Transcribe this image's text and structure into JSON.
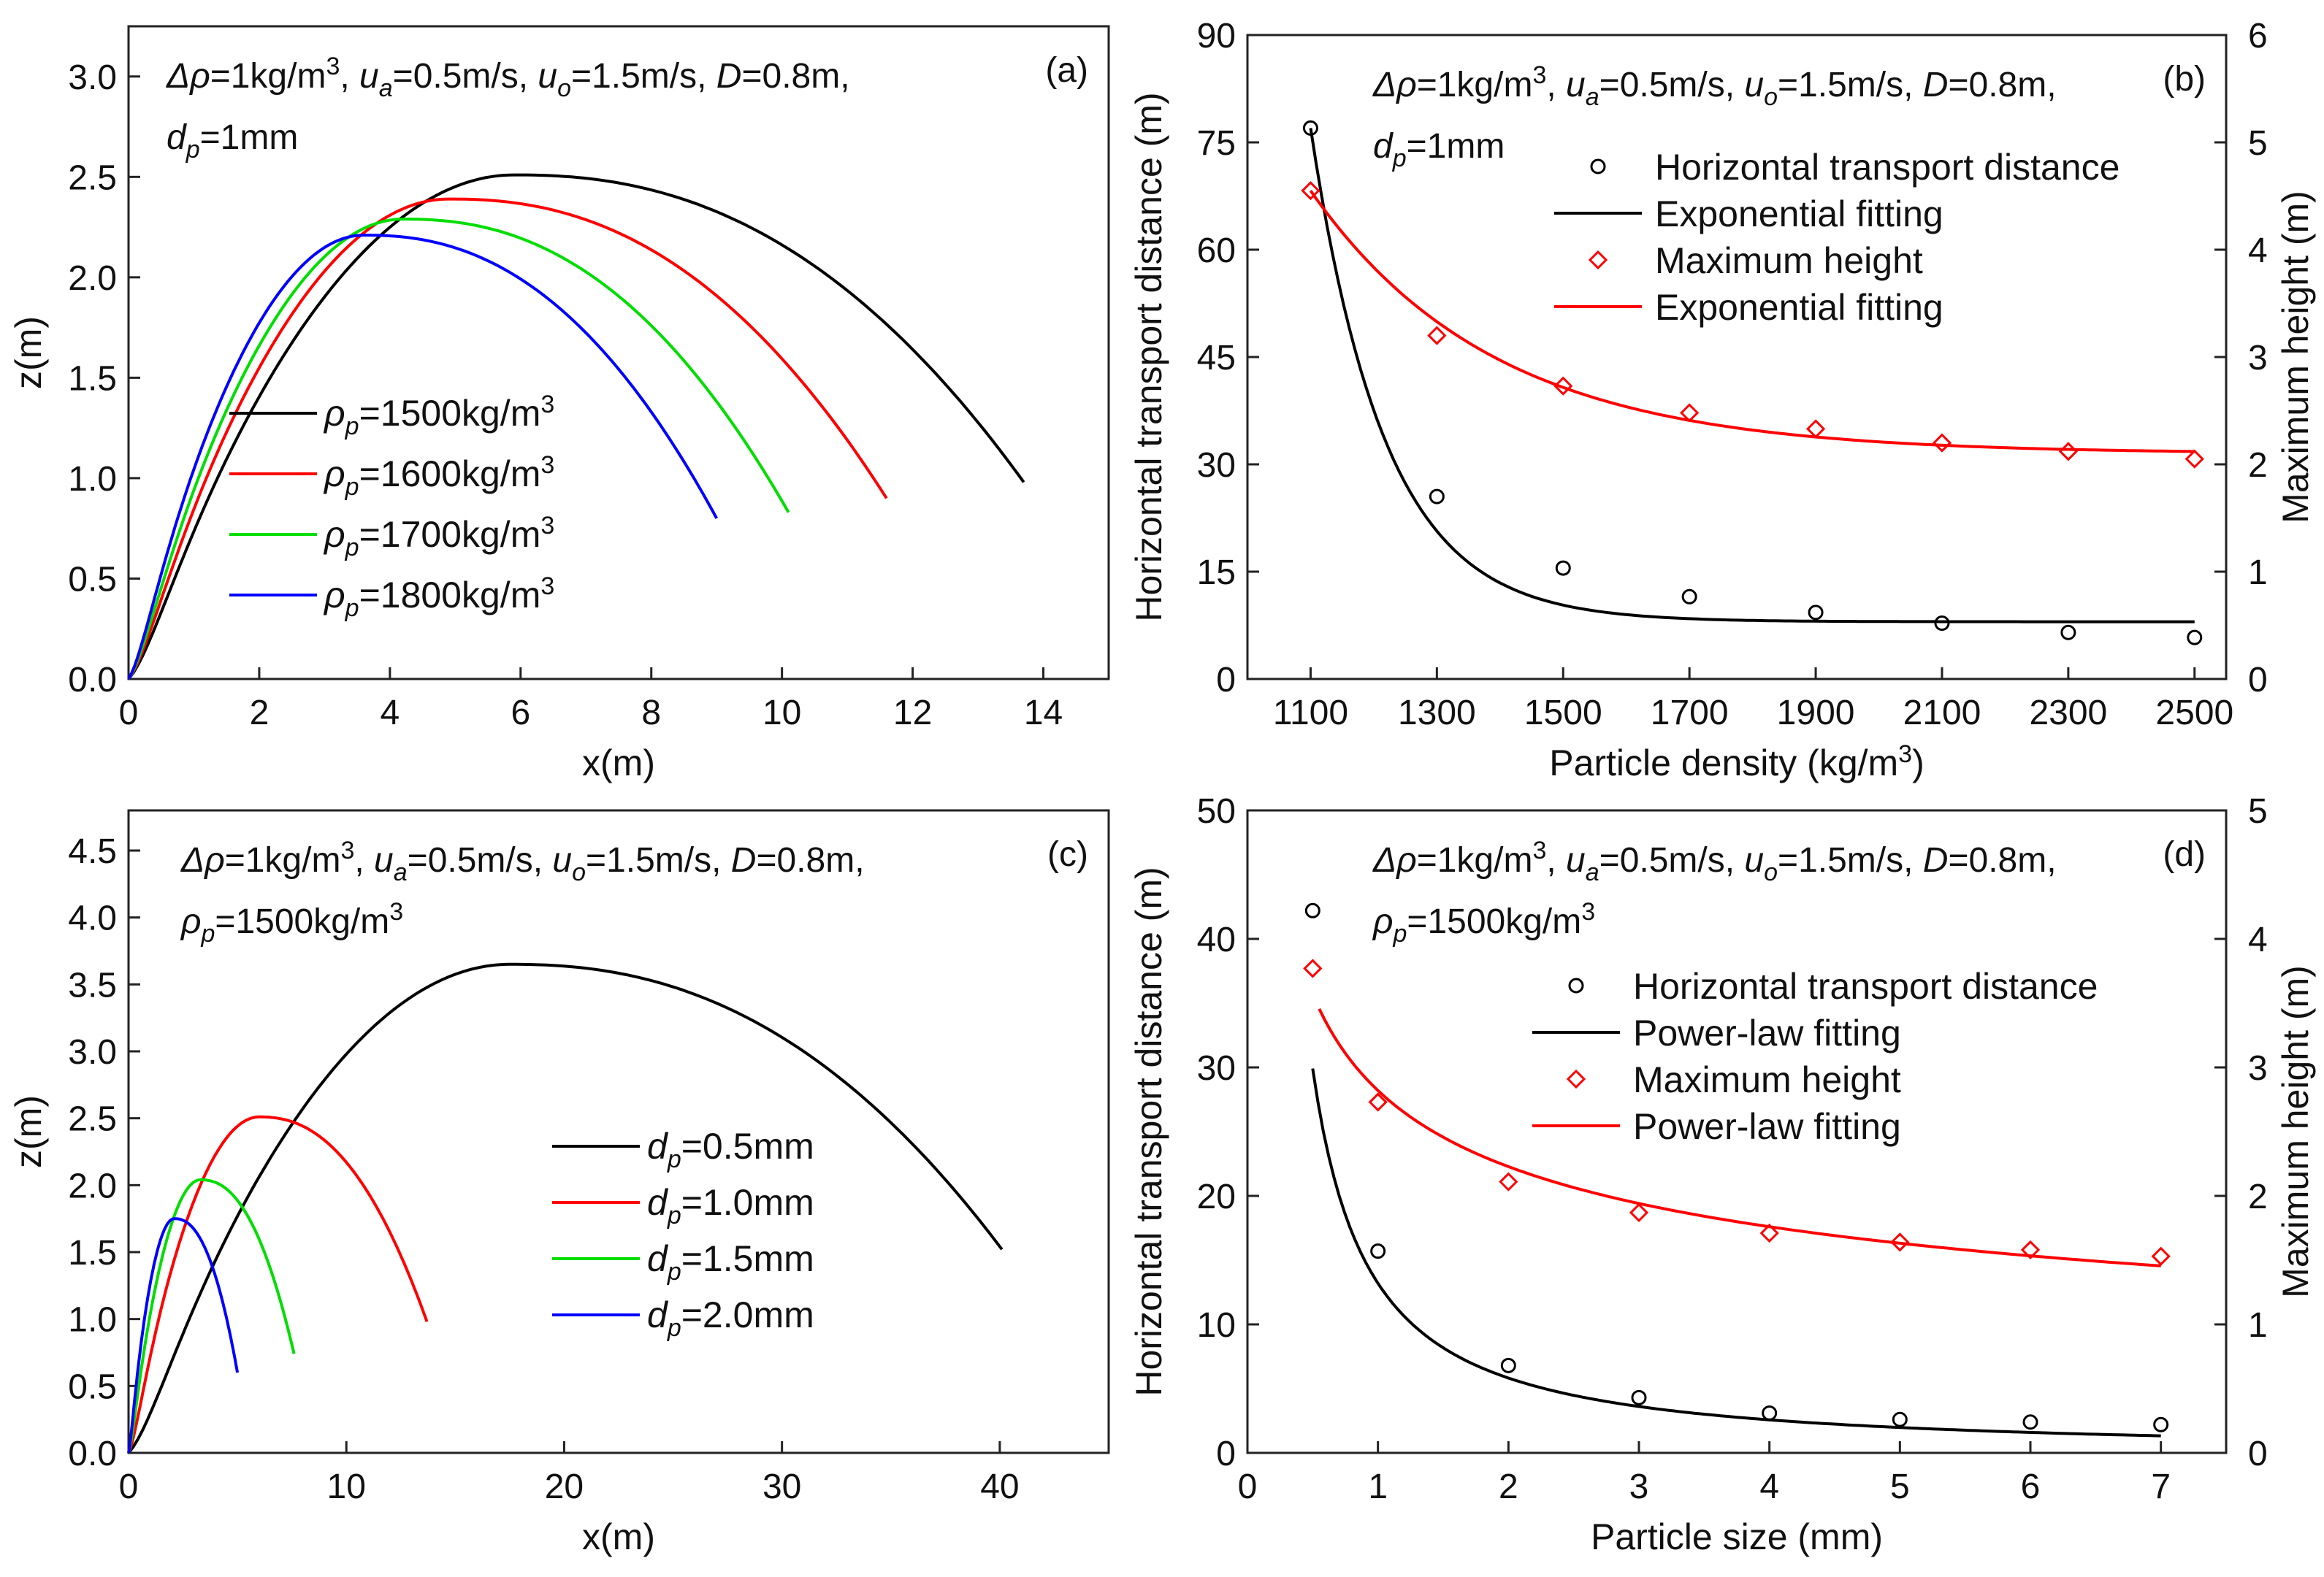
{
  "figure": {
    "panel_count": 4
  },
  "chart_data": [
    {
      "id": "a",
      "type": "line",
      "panel_label": "(a)",
      "xlabel": "x(m)",
      "ylabel": "z(m)",
      "xlim": [
        0,
        15
      ],
      "ylim": [
        0,
        3.25
      ],
      "xticks": [
        0,
        2,
        4,
        6,
        8,
        10,
        12,
        14
      ],
      "yticks": [
        0.0,
        0.5,
        1.0,
        1.5,
        2.0,
        2.5,
        3.0
      ],
      "ytick_labels": [
        "0.0",
        "0.5",
        "1.0",
        "1.5",
        "2.0",
        "2.5",
        "3.0"
      ],
      "annotation": [
        [
          [
            "Δρ",
            "i"
          ],
          [
            "=1kg/m",
            ""
          ],
          [
            "3",
            "sup"
          ],
          [
            ", ",
            ""
          ],
          [
            "u",
            "i"
          ],
          [
            "a",
            "sub"
          ],
          [
            "=0.5m/s, ",
            ""
          ],
          [
            "u",
            "i"
          ],
          [
            "o",
            "sub"
          ],
          [
            "=1.5m/s, ",
            ""
          ],
          [
            "D",
            "i"
          ],
          [
            "=0.8m,",
            ""
          ]
        ],
        [
          [
            "d",
            "i"
          ],
          [
            "p",
            "sub"
          ],
          [
            "=1mm",
            ""
          ]
        ]
      ],
      "legend": {
        "position": "center-left"
      },
      "series": [
        {
          "name": "ρp=1500kg/m3",
          "sub": "p",
          "value": "=1500kg/m",
          "sup": "3",
          "color": "#000000",
          "x_end": 13.7,
          "z_end": 0.98,
          "x_peak": 5.9,
          "z_peak": 2.51
        },
        {
          "name": "ρp=1600kg/m3",
          "sub": "p",
          "value": "=1600kg/m",
          "sup": "3",
          "color": "#ff0000",
          "x_end": 11.6,
          "z_end": 0.9,
          "x_peak": 4.9,
          "z_peak": 2.39
        },
        {
          "name": "ρp=1700kg/m3",
          "sub": "p",
          "value": "=1700kg/m",
          "sup": "3",
          "color": "#00dd00",
          "x_end": 10.1,
          "z_end": 0.83,
          "x_peak": 4.2,
          "z_peak": 2.29
        },
        {
          "name": "ρp=1800kg/m3",
          "sub": "p",
          "value": "=1800kg/m",
          "sup": "3",
          "color": "#0000ff",
          "x_end": 9.0,
          "z_end": 0.8,
          "x_peak": 3.6,
          "z_peak": 2.21
        }
      ]
    },
    {
      "id": "b",
      "type": "scatter",
      "panel_label": "(b)",
      "xlabel": "Particle density (kg/m",
      "xlabel_sup": "3",
      "xlabel_tail": ")",
      "ylabel": "Horizontal transport distance (m)",
      "y2label": "Maximum height (m)",
      "xlim": [
        1000,
        2550
      ],
      "ylim": [
        0,
        90
      ],
      "y2lim": [
        0,
        6
      ],
      "xticks": [
        1100,
        1300,
        1500,
        1700,
        1900,
        2100,
        2300,
        2500
      ],
      "yticks": [
        0,
        15,
        30,
        45,
        60,
        75,
        90
      ],
      "y2ticks": [
        0,
        1,
        2,
        3,
        4,
        5,
        6
      ],
      "annotation": [
        [
          [
            "Δρ",
            "i"
          ],
          [
            "=1kg/m",
            ""
          ],
          [
            "3",
            "sup"
          ],
          [
            ", ",
            ""
          ],
          [
            "u",
            "i"
          ],
          [
            "a",
            "sub"
          ],
          [
            "=0.5m/s, ",
            ""
          ],
          [
            "u",
            "i"
          ],
          [
            "o",
            "sub"
          ],
          [
            "=1.5m/s, ",
            ""
          ],
          [
            "D",
            "i"
          ],
          [
            "=0.8m,",
            ""
          ]
        ],
        [
          [
            "d",
            "i"
          ],
          [
            "p",
            "sub"
          ],
          [
            "=1mm",
            ""
          ]
        ]
      ],
      "legend": {
        "position": "top-right",
        "entries": [
          "Horizontal transport distance",
          "Exponential fitting",
          "Maximum height",
          "Exponential fitting"
        ]
      },
      "x": [
        1100,
        1300,
        1500,
        1700,
        1900,
        2100,
        2300,
        2500
      ],
      "series": [
        {
          "name": "Horizontal transport distance",
          "axis": "left",
          "marker": "circle",
          "color": "#000000",
          "values": [
            77.0,
            25.5,
            15.5,
            11.5,
            9.3,
            7.8,
            6.5,
            5.8
          ]
        },
        {
          "name": "Exponential fitting",
          "axis": "left",
          "kind": "exponential",
          "color": "#000000",
          "params": {
            "y0": 8.0,
            "A": 69.0,
            "x0": 1100,
            "tau": 118
          }
        },
        {
          "name": "Maximum height",
          "axis": "right",
          "marker": "diamond",
          "color": "#ff0000",
          "values": [
            4.55,
            3.2,
            2.73,
            2.48,
            2.33,
            2.2,
            2.12,
            2.05
          ]
        },
        {
          "name": "Exponential fitting",
          "axis": "right",
          "kind": "exponential",
          "color": "#ff0000",
          "params": {
            "y0": 2.1,
            "A": 2.45,
            "x0": 1100,
            "tau": 290
          }
        }
      ]
    },
    {
      "id": "c",
      "type": "line",
      "panel_label": "(c)",
      "xlabel": "x(m)",
      "ylabel": "z(m)",
      "xlim": [
        0,
        45
      ],
      "ylim": [
        0,
        4.8
      ],
      "xticks": [
        0,
        10,
        20,
        30,
        40
      ],
      "yticks": [
        0.0,
        0.5,
        1.0,
        1.5,
        2.0,
        2.5,
        3.0,
        3.5,
        4.0,
        4.5
      ],
      "ytick_labels": [
        "0.0",
        "0.5",
        "1.0",
        "1.5",
        "2.0",
        "2.5",
        "3.0",
        "3.5",
        "4.0",
        "4.5"
      ],
      "annotation": [
        [
          [
            "Δρ",
            "i"
          ],
          [
            "=1kg/m",
            ""
          ],
          [
            "3",
            "sup"
          ],
          [
            ", ",
            ""
          ],
          [
            "u",
            "i"
          ],
          [
            "a",
            "sub"
          ],
          [
            "=0.5m/s, ",
            ""
          ],
          [
            "u",
            "i"
          ],
          [
            "o",
            "sub"
          ],
          [
            "=1.5m/s, ",
            ""
          ],
          [
            "D",
            "i"
          ],
          [
            "=0.8m,",
            ""
          ]
        ],
        [
          [
            "ρ",
            "i"
          ],
          [
            "p",
            "sub"
          ],
          [
            "=1500kg/m",
            ""
          ],
          [
            "3",
            "sup"
          ]
        ]
      ],
      "legend": {
        "position": "center-right"
      },
      "series": [
        {
          "name": "dp=0.5mm",
          "sub": "p",
          "value": "=0.5mm",
          "color": "#000000",
          "x_end": 40.1,
          "z_end": 1.52,
          "x_peak": 17.5,
          "z_peak": 3.65
        },
        {
          "name": "dp=1.0mm",
          "sub": "p",
          "value": "=1.0mm",
          "color": "#ff0000",
          "x_end": 13.7,
          "z_end": 0.98,
          "x_peak": 6.0,
          "z_peak": 2.51
        },
        {
          "name": "dp=1.5mm",
          "sub": "p",
          "value": "=1.5mm",
          "color": "#00dd00",
          "x_end": 7.6,
          "z_end": 0.74,
          "x_peak": 3.3,
          "z_peak": 2.04
        },
        {
          "name": "dp=2.0mm",
          "sub": "p",
          "value": "=2.0mm",
          "color": "#0000ff",
          "x_end": 5.0,
          "z_end": 0.6,
          "x_peak": 2.1,
          "z_peak": 1.75
        }
      ]
    },
    {
      "id": "d",
      "type": "scatter",
      "panel_label": "(d)",
      "xlabel": "Particle size (mm)",
      "ylabel": "Horizontal transport distance (m)",
      "y2label": "Maximum height (m)",
      "xlim": [
        0,
        7.5
      ],
      "ylim": [
        0,
        50
      ],
      "y2lim": [
        0,
        5
      ],
      "xticks": [
        0,
        1,
        2,
        3,
        4,
        5,
        6,
        7
      ],
      "yticks": [
        0,
        10,
        20,
        30,
        40,
        50
      ],
      "y2ticks": [
        0,
        1,
        2,
        3,
        4,
        5
      ],
      "annotation": [
        [
          [
            "Δρ",
            "i"
          ],
          [
            "=1kg/m",
            ""
          ],
          [
            "3",
            "sup"
          ],
          [
            ", ",
            ""
          ],
          [
            "u",
            "i"
          ],
          [
            "a",
            "sub"
          ],
          [
            "=0.5m/s, ",
            ""
          ],
          [
            "u",
            "i"
          ],
          [
            "o",
            "sub"
          ],
          [
            "=1.5m/s, ",
            ""
          ],
          [
            "D",
            "i"
          ],
          [
            "=0.8m,",
            ""
          ]
        ],
        [
          [
            "ρ",
            "i"
          ],
          [
            "p",
            "sub"
          ],
          [
            "=1500kg/m",
            ""
          ],
          [
            "3",
            "sup"
          ]
        ]
      ],
      "legend": {
        "position": "top-right",
        "entries": [
          "Horizontal transport distance",
          "Power-law fitting",
          "Maximum height",
          "Power-law fitting"
        ]
      },
      "x": [
        0.5,
        1,
        2,
        3,
        4,
        5,
        6,
        7
      ],
      "series": [
        {
          "name": "Horizontal transport distance",
          "axis": "left",
          "marker": "circle",
          "color": "#000000",
          "values": [
            42.2,
            15.7,
            6.8,
            4.3,
            3.1,
            2.6,
            2.4,
            2.2
          ]
        },
        {
          "name": "Power-law fitting",
          "axis": "left",
          "kind": "power",
          "color": "#000000",
          "params": {
            "a": 13.2,
            "b": -1.18,
            "c": 0.0
          },
          "x_range": [
            0.5,
            7
          ]
        },
        {
          "name": "Maximum height",
          "axis": "right",
          "marker": "diamond",
          "color": "#ff0000",
          "values": [
            3.77,
            2.73,
            2.11,
            1.87,
            1.71,
            1.64,
            1.58,
            1.53
          ]
        },
        {
          "name": "Power-law fitting",
          "axis": "right",
          "kind": "power",
          "color": "#ff0000",
          "params": {
            "a": 2.82,
            "b": -0.34,
            "c": 0.0
          },
          "x_range": [
            0.55,
            7
          ]
        }
      ]
    }
  ]
}
